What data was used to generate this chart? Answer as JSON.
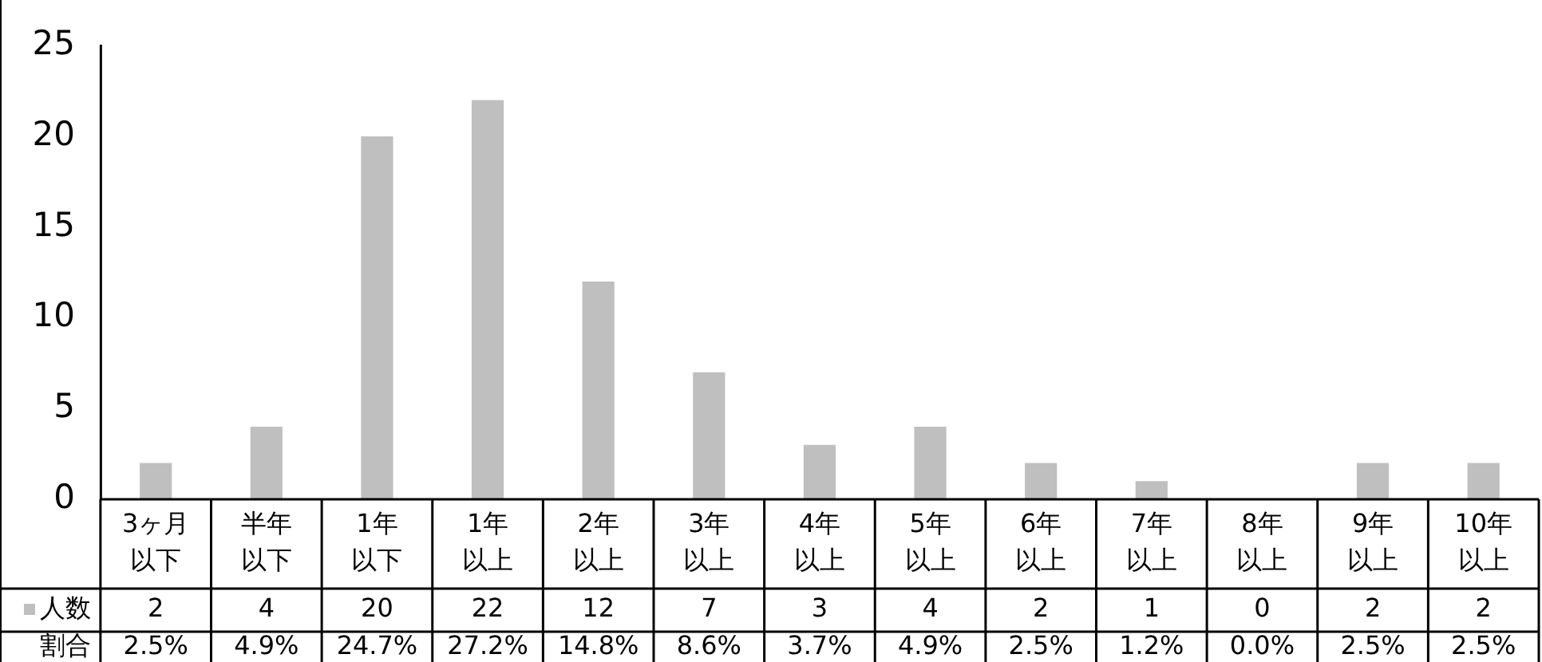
{
  "chart_data": {
    "type": "bar",
    "categories": [
      "3ヶ月以下",
      "半年以下",
      "1年以下",
      "1年以上",
      "2年以上",
      "3年以上",
      "4年以上",
      "5年以上",
      "6年以上",
      "7年以上",
      "8年以上",
      "9年以上",
      "10年以上"
    ],
    "series": [
      {
        "name": "人数",
        "color": "#bfbfbf",
        "values": [
          2,
          4,
          20,
          22,
          12,
          7,
          3,
          4,
          2,
          1,
          0,
          2,
          2
        ]
      }
    ],
    "ylim": [
      0,
      25
    ],
    "yticks": [
      0,
      5,
      10,
      15,
      20,
      25
    ],
    "grid": false,
    "legend": "bottom",
    "data_labels": true,
    "annotations": [
      "割合",
      "2.5%",
      "4.9%",
      "24.7%",
      "27.2%",
      "14.8%",
      "8.6%",
      "3.7%",
      "4.9%",
      "2.5%",
      "1.2%",
      "0.0%",
      "2.5%",
      "2.5%"
    ]
  }
}
